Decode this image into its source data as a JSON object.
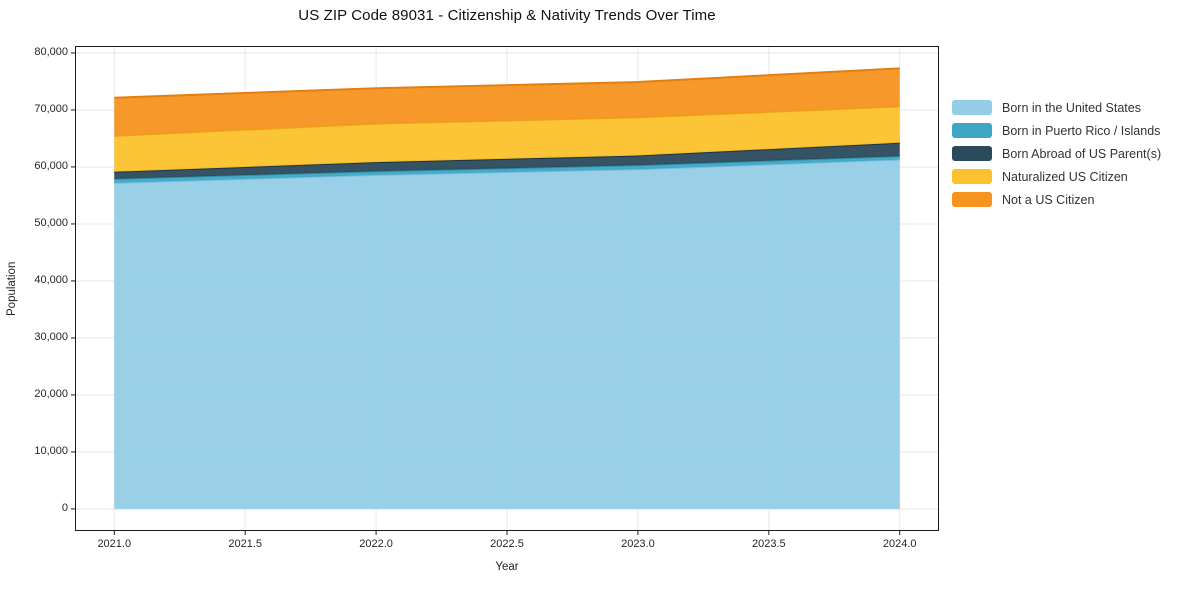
{
  "title": "US ZIP Code 89031 - Citizenship & Nativity Trends Over Time",
  "chart_data": {
    "type": "area",
    "stacked": true,
    "title": "US ZIP Code 89031 - Citizenship & Nativity Trends Over Time",
    "xlabel": "Year",
    "ylabel": "Population",
    "x": [
      2021,
      2022,
      2023,
      2024
    ],
    "series": [
      {
        "name": "Born in the United States",
        "color": "#94cee6",
        "edge_color": "#79bedd",
        "values": [
          57200,
          58600,
          59600,
          61300
        ]
      },
      {
        "name": "Born in Puerto Rico / Islands",
        "color": "#3ea8c4",
        "edge_color": "#2e90aa",
        "values": [
          700,
          650,
          700,
          600
        ]
      },
      {
        "name": "Born Abroad of US Parent(s)",
        "color": "#2a4a5c",
        "edge_color": "#1c3542",
        "values": [
          1250,
          1600,
          1700,
          2350
        ]
      },
      {
        "name": "Naturalized US Citizen",
        "color": "#fcc22d",
        "edge_color": "#eca716",
        "values": [
          6300,
          6750,
          6700,
          6350
        ]
      },
      {
        "name": "Not a US Citizen",
        "color": "#f7941f",
        "edge_color": "#e37f0e",
        "values": [
          6700,
          6200,
          6200,
          6700
        ]
      }
    ],
    "totals": [
      72150,
      73800,
      74900,
      77300
    ],
    "xlim": [
      2020.85,
      2024.15
    ],
    "ylim": [
      -3870,
      81220
    ],
    "grid": true,
    "grid_color": "#e7e7e7",
    "frame_color": "#1a1a1a",
    "legend_position": "right",
    "xticks": [
      {
        "value": 2021.0,
        "label": "2021.0"
      },
      {
        "value": 2021.5,
        "label": "2021.5"
      },
      {
        "value": 2022.0,
        "label": "2022.0"
      },
      {
        "value": 2022.5,
        "label": "2022.5"
      },
      {
        "value": 2023.0,
        "label": "2023.0"
      },
      {
        "value": 2023.5,
        "label": "2023.5"
      },
      {
        "value": 2024.0,
        "label": "2024.0"
      }
    ],
    "yticks": [
      {
        "value": 0,
        "label": "0"
      },
      {
        "value": 10000,
        "label": "10,000"
      },
      {
        "value": 20000,
        "label": "20,000"
      },
      {
        "value": 30000,
        "label": "30,000"
      },
      {
        "value": 40000,
        "label": "40,000"
      },
      {
        "value": 50000,
        "label": "50,000"
      },
      {
        "value": 60000,
        "label": "60,000"
      },
      {
        "value": 70000,
        "label": "70,000"
      },
      {
        "value": 80000,
        "label": "80,000"
      }
    ]
  }
}
